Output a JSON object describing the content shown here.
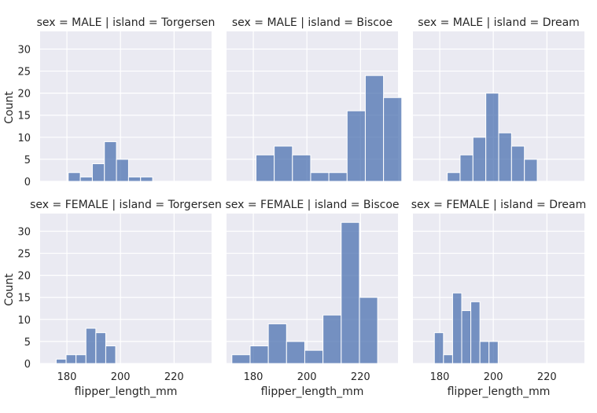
{
  "chart_data": {
    "type": "bar",
    "facet_grid": {
      "rows": 2,
      "cols": 3
    },
    "ylim": [
      0,
      34
    ],
    "xlim": [
      170,
      234
    ],
    "yticks": [
      0,
      5,
      10,
      15,
      20,
      25,
      30
    ],
    "xticks": [
      180,
      200,
      220
    ],
    "ylabel": "Count",
    "xlabel": "flipper_length_mm",
    "grid": true,
    "color": "#4c72b0",
    "background": "#eaeaf2",
    "panels": [
      {
        "title": "sex = MALE | island = Torgersen",
        "bins": [
          [
            180.5,
            2
          ],
          [
            185,
            1
          ],
          [
            189.5,
            4
          ],
          [
            194,
            9
          ],
          [
            198.5,
            5
          ],
          [
            203,
            1
          ],
          [
            207.5,
            1
          ]
        ],
        "width": 4.5
      },
      {
        "title": "sex = MALE | island = Biscoe",
        "bins": [
          [
            181,
            6
          ],
          [
            187.8,
            8
          ],
          [
            194.6,
            6
          ],
          [
            201.4,
            2
          ],
          [
            208.2,
            2
          ],
          [
            215,
            16
          ],
          [
            221.8,
            24
          ],
          [
            228.6,
            19
          ]
        ],
        "width": 6.8
      },
      {
        "title": "sex = MALE | island = Dream",
        "bins": [
          [
            182.8,
            2
          ],
          [
            187.6,
            6
          ],
          [
            192.4,
            10
          ],
          [
            197.2,
            20
          ],
          [
            202,
            11
          ],
          [
            206.8,
            8
          ],
          [
            211.6,
            5
          ]
        ],
        "width": 4.8
      },
      {
        "title": "sex = FEMALE | island = Torgersen",
        "bins": [
          [
            176,
            1
          ],
          [
            179.7,
            2
          ],
          [
            183.4,
            2
          ],
          [
            187.1,
            8
          ],
          [
            190.8,
            7
          ],
          [
            194.5,
            4
          ]
        ],
        "width": 3.7
      },
      {
        "title": "sex = FEMALE | island = Biscoe",
        "bins": [
          [
            172,
            2
          ],
          [
            178.8,
            4
          ],
          [
            185.6,
            9
          ],
          [
            192.4,
            5
          ],
          [
            199.2,
            3
          ],
          [
            206,
            11
          ],
          [
            212.8,
            32
          ],
          [
            219.6,
            15
          ]
        ],
        "width": 6.8
      },
      {
        "title": "sex = FEMALE | island = Dream",
        "bins": [
          [
            178,
            7
          ],
          [
            181.4,
            2
          ],
          [
            184.8,
            16
          ],
          [
            188.2,
            12
          ],
          [
            191.6,
            14
          ],
          [
            195,
            5
          ],
          [
            198.4,
            5
          ]
        ],
        "width": 3.4
      }
    ]
  }
}
